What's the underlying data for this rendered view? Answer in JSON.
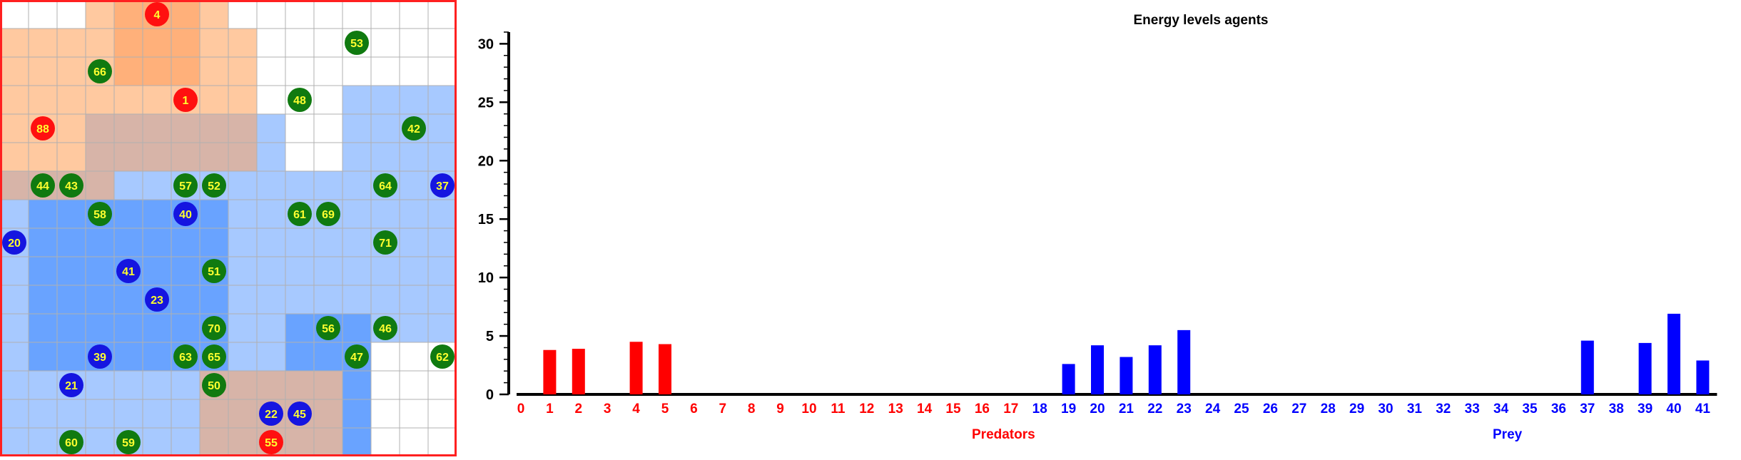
{
  "grid": {
    "cols": 16,
    "rows": 16,
    "colors": {
      "orange": "#ffc9a0",
      "orange_dark": "#ffb07a",
      "blue": "#a7c9ff",
      "blue_dark": "#69a3ff",
      "mixed": "#d7b4a8",
      "grid_line": "#b0b0b0",
      "border": "#ff2020",
      "predator": "#ff1010",
      "prey": "#1515e0",
      "food": "#107a10",
      "label": "#ffff30"
    },
    "regions": [
      {
        "type": "orange",
        "c0": 3,
        "r0": 0,
        "c1": 8,
        "r1": 1
      },
      {
        "type": "orange",
        "c0": 0,
        "r0": 1,
        "c1": 9,
        "r1": 6
      },
      {
        "type": "orange_dark",
        "c0": 4,
        "r0": 0,
        "c1": 7,
        "r1": 3
      },
      {
        "type": "blue",
        "c0": 12,
        "r0": 3,
        "c1": 16,
        "r1": 12
      },
      {
        "type": "blue",
        "c0": 9,
        "r0": 4,
        "c1": 10,
        "r1": 11
      },
      {
        "type": "blue",
        "c0": 0,
        "r0": 6,
        "c1": 13,
        "r1": 16
      },
      {
        "type": "blue_dark",
        "c0": 1,
        "r0": 7,
        "c1": 8,
        "r1": 13
      },
      {
        "type": "blue_dark",
        "c0": 10,
        "r0": 11,
        "c1": 13,
        "r1": 16
      },
      {
        "type": "mixed",
        "c0": 3,
        "r0": 4,
        "c1": 9,
        "r1": 6
      },
      {
        "type": "mixed",
        "c0": 0,
        "r0": 6,
        "c1": 4,
        "r1": 7
      },
      {
        "type": "mixed",
        "c0": 7,
        "r0": 13,
        "c1": 12,
        "r1": 16
      }
    ],
    "agents": [
      {
        "id": "4",
        "kind": "predator",
        "col": 5,
        "row": 0
      },
      {
        "id": "53",
        "kind": "food",
        "col": 12,
        "row": 1
      },
      {
        "id": "66",
        "kind": "food",
        "col": 3,
        "row": 2
      },
      {
        "id": "1",
        "kind": "predator",
        "col": 6,
        "row": 3
      },
      {
        "id": "48",
        "kind": "food",
        "col": 10,
        "row": 3
      },
      {
        "id": "88",
        "kind": "predator",
        "col": 1,
        "row": 4
      },
      {
        "id": "42",
        "kind": "food",
        "col": 14,
        "row": 4
      },
      {
        "id": "44",
        "kind": "food",
        "col": 1,
        "row": 6
      },
      {
        "id": "43",
        "kind": "food",
        "col": 2,
        "row": 6
      },
      {
        "id": "57",
        "kind": "food",
        "col": 6,
        "row": 6
      },
      {
        "id": "52",
        "kind": "food",
        "col": 7,
        "row": 6
      },
      {
        "id": "64",
        "kind": "food",
        "col": 13,
        "row": 6
      },
      {
        "id": "37",
        "kind": "prey",
        "col": 15,
        "row": 6
      },
      {
        "id": "58",
        "kind": "food",
        "col": 3,
        "row": 7
      },
      {
        "id": "40",
        "kind": "prey",
        "col": 6,
        "row": 7
      },
      {
        "id": "61",
        "kind": "food",
        "col": 10,
        "row": 7
      },
      {
        "id": "69",
        "kind": "food",
        "col": 11,
        "row": 7
      },
      {
        "id": "20",
        "kind": "prey",
        "col": 0,
        "row": 8
      },
      {
        "id": "71",
        "kind": "food",
        "col": 13,
        "row": 8
      },
      {
        "id": "41",
        "kind": "prey",
        "col": 4,
        "row": 9
      },
      {
        "id": "51",
        "kind": "food",
        "col": 7,
        "row": 9
      },
      {
        "id": "23",
        "kind": "prey",
        "col": 5,
        "row": 10
      },
      {
        "id": "70",
        "kind": "food",
        "col": 7,
        "row": 11
      },
      {
        "id": "56",
        "kind": "food",
        "col": 11,
        "row": 11
      },
      {
        "id": "46",
        "kind": "food",
        "col": 13,
        "row": 11
      },
      {
        "id": "39",
        "kind": "prey",
        "col": 3,
        "row": 12
      },
      {
        "id": "63",
        "kind": "food",
        "col": 6,
        "row": 12
      },
      {
        "id": "65",
        "kind": "food",
        "col": 7,
        "row": 12
      },
      {
        "id": "47",
        "kind": "food",
        "col": 12,
        "row": 12
      },
      {
        "id": "62",
        "kind": "food",
        "col": 15,
        "row": 12
      },
      {
        "id": "21",
        "kind": "prey",
        "col": 2,
        "row": 13
      },
      {
        "id": "50",
        "kind": "food",
        "col": 7,
        "row": 13
      },
      {
        "id": "22",
        "kind": "prey",
        "col": 9,
        "row": 14
      },
      {
        "id": "45",
        "kind": "prey",
        "col": 10,
        "row": 14
      },
      {
        "id": "60",
        "kind": "food",
        "col": 2,
        "row": 15
      },
      {
        "id": "59",
        "kind": "food",
        "col": 4,
        "row": 15
      },
      {
        "id": "55",
        "kind": "predator",
        "col": 9,
        "row": 15
      }
    ]
  },
  "chart_data": {
    "type": "bar",
    "title": "Energy levels agents",
    "ylim": [
      0,
      31
    ],
    "y_ticks": [
      0,
      5,
      10,
      15,
      20,
      25,
      30
    ],
    "categories": [
      "0",
      "1",
      "2",
      "3",
      "4",
      "5",
      "6",
      "7",
      "8",
      "9",
      "10",
      "11",
      "12",
      "13",
      "14",
      "15",
      "16",
      "17",
      "18",
      "19",
      "20",
      "21",
      "22",
      "23",
      "24",
      "25",
      "26",
      "27",
      "28",
      "29",
      "30",
      "31",
      "32",
      "33",
      "34",
      "35",
      "36",
      "37",
      "38",
      "39",
      "40",
      "41"
    ],
    "predator_ids": [
      "0",
      "1",
      "2",
      "3",
      "4",
      "5",
      "6",
      "7",
      "8",
      "9",
      "10",
      "11",
      "12",
      "13",
      "14",
      "15",
      "16",
      "17"
    ],
    "values": [
      0,
      3.8,
      3.9,
      0,
      4.5,
      4.3,
      0,
      0,
      0,
      0,
      0,
      0,
      0,
      0,
      0,
      0,
      0,
      0,
      0,
      2.6,
      4.2,
      3.2,
      4.2,
      5.5,
      0,
      0,
      0,
      0,
      0,
      0,
      0,
      0,
      0,
      0,
      0,
      0,
      0,
      4.6,
      0,
      4.4,
      6.9,
      2.9
    ],
    "legend": {
      "predators": "Predators",
      "prey": "Prey"
    },
    "colors": {
      "predator": "#ff0000",
      "prey": "#0000ff",
      "axis": "#000000"
    }
  }
}
